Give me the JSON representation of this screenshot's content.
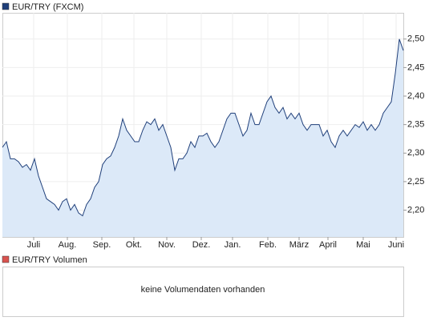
{
  "chart_data": {
    "type": "area",
    "series": [
      {
        "name": "EUR/TRY (FXCM)",
        "color": "#1f3f7a",
        "fill": "#dce9f8",
        "values": [
          2.31,
          2.32,
          2.29,
          2.29,
          2.285,
          2.275,
          2.28,
          2.27,
          2.29,
          2.26,
          2.24,
          2.22,
          2.215,
          2.21,
          2.2,
          2.215,
          2.22,
          2.2,
          2.21,
          2.195,
          2.19,
          2.21,
          2.22,
          2.24,
          2.25,
          2.28,
          2.29,
          2.295,
          2.31,
          2.33,
          2.36,
          2.34,
          2.33,
          2.32,
          2.32,
          2.34,
          2.355,
          2.35,
          2.36,
          2.34,
          2.35,
          2.33,
          2.31,
          2.27,
          2.29,
          2.29,
          2.3,
          2.32,
          2.31,
          2.33,
          2.33,
          2.335,
          2.32,
          2.31,
          2.32,
          2.34,
          2.36,
          2.37,
          2.37,
          2.35,
          2.33,
          2.34,
          2.37,
          2.35,
          2.35,
          2.37,
          2.39,
          2.4,
          2.38,
          2.37,
          2.38,
          2.36,
          2.37,
          2.36,
          2.37,
          2.35,
          2.34,
          2.35,
          2.35,
          2.35,
          2.33,
          2.34,
          2.32,
          2.31,
          2.33,
          2.34,
          2.33,
          2.34,
          2.35,
          2.345,
          2.355,
          2.34,
          2.35,
          2.34,
          2.35,
          2.37,
          2.38,
          2.39,
          2.44,
          2.5,
          2.48
        ]
      }
    ],
    "xlim": [
      0,
      100
    ],
    "xticks": [
      {
        "value": 7.8,
        "label": "Juli"
      },
      {
        "value": 16.2,
        "label": "Aug."
      },
      {
        "value": 24.8,
        "label": "Sep."
      },
      {
        "value": 32.8,
        "label": "Okt."
      },
      {
        "value": 41,
        "label": "Nov."
      },
      {
        "value": 49.6,
        "label": "Dez."
      },
      {
        "value": 57.4,
        "label": "Jan."
      },
      {
        "value": 66.2,
        "label": "Feb."
      },
      {
        "value": 74,
        "label": "März"
      },
      {
        "value": 81.2,
        "label": "April"
      },
      {
        "value": 90,
        "label": "Mai"
      },
      {
        "value": 98.2,
        "label": "Juni"
      }
    ],
    "ylim": [
      2.153,
      2.546
    ],
    "yticks": [
      {
        "value": 2.2,
        "label": "2,20"
      },
      {
        "value": 2.25,
        "label": "2,25"
      },
      {
        "value": 2.3,
        "label": "2,30"
      },
      {
        "value": 2.35,
        "label": "2,35"
      },
      {
        "value": 2.4,
        "label": "2,40"
      },
      {
        "value": 2.45,
        "label": "2,45"
      },
      {
        "value": 2.5,
        "label": "2,50"
      }
    ],
    "grid": true,
    "volume": {
      "name": "EUR/TRY Volumen",
      "color": "#d9534f",
      "message": "keine Volumendaten vorhanden"
    }
  }
}
